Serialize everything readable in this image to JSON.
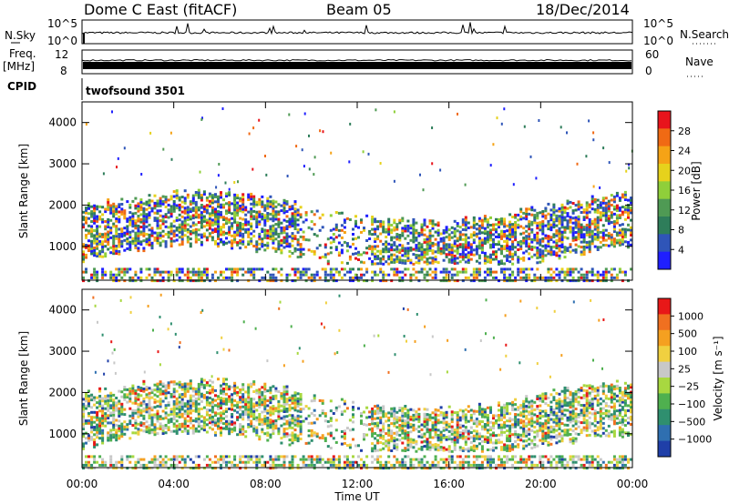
{
  "header": {
    "site": "Dome C East (fitACF)",
    "beam": "Beam 05",
    "date": "18/Dec/2014"
  },
  "strips": {
    "nsky_label": "N.Sky",
    "nsky_ticks": [
      "10^5",
      "10^0"
    ],
    "nsearch_label": "N.Search",
    "nsearch_ticks": [
      "10^5",
      "10^0"
    ],
    "freq_label": "Freq.",
    "freq_unit": "[MHz]",
    "freq_ticks": [
      "12",
      "8"
    ],
    "nave_label": "Nave",
    "nave_ticks": [
      "60",
      "0"
    ],
    "cpid_label": "CPID",
    "cpid_value": "twofsound 3501"
  },
  "time_axis": {
    "label": "Time UT",
    "ticks": [
      "00:00",
      "04:00",
      "08:00",
      "12:00",
      "16:00",
      "20:00",
      "00:00"
    ]
  },
  "chart_data": [
    {
      "type": "heatmap",
      "title": "",
      "xlabel": "Time UT",
      "ylabel": "Slant Range [km]",
      "x_range_hours": [
        0,
        24
      ],
      "ylim": [
        180,
        4500
      ],
      "y_ticks": [
        1000,
        2000,
        3000,
        4000
      ],
      "colorbar": {
        "label": "Power [dB]",
        "ticks": [
          "4",
          "8",
          "12",
          "16",
          "20",
          "24",
          "28"
        ],
        "range": [
          0,
          30
        ],
        "colors": [
          "#1f1fff",
          "#2f55b8",
          "#2e7d5a",
          "#4f9a54",
          "#8fcf3a",
          "#e6d21c",
          "#f5a316",
          "#f06a14",
          "#e8141c"
        ]
      }
    },
    {
      "type": "heatmap",
      "title": "",
      "xlabel": "Time UT",
      "ylabel": "Slant Range [km]",
      "x_range_hours": [
        0,
        24
      ],
      "ylim": [
        180,
        4500
      ],
      "y_ticks": [
        1000,
        2000,
        3000,
        4000
      ],
      "colorbar": {
        "label": "Velocity [m s⁻¹]",
        "ticks": [
          "1000",
          "500",
          "100",
          "25",
          "−25",
          "−100",
          "−500",
          "−1000"
        ],
        "colors": [
          "#1f3fa8",
          "#2f6fb0",
          "#2f8f6f",
          "#4fb04f",
          "#a8d840",
          "#c8c8c8",
          "#f0d040",
          "#f5a020",
          "#f07020",
          "#e81818"
        ]
      }
    }
  ]
}
